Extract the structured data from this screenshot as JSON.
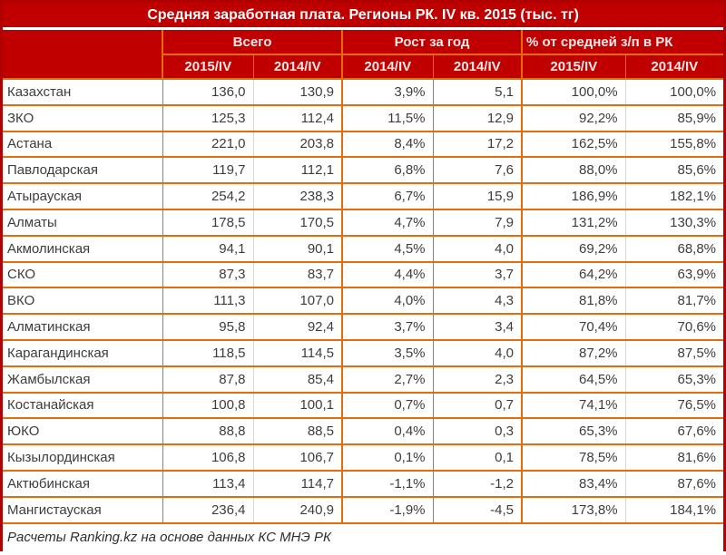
{
  "title": "Средняя заработная плата. Регионы РК. IV кв. 2015 (тыс. тг)",
  "footer": "Расчеты Ranking.kz на основе данных КС МНЭ РК",
  "colors": {
    "dark_red_background": "#c00000",
    "outer_border_red": "#b00000",
    "orange_cell_border": "#e66c09",
    "light_gray_cell_border": "#d6d6d6",
    "title_text": "#ffffff",
    "header_text": "#fbe9e7",
    "data_text": "#3d3d3d"
  },
  "chart_data": {
    "type": "table",
    "title": "Средняя заработная плата. Регионы РК. IV кв. 2015 (тыс. тг)",
    "column_groups": [
      {
        "label": "Всего",
        "columns": [
          "2015/IV",
          "2014/IV"
        ]
      },
      {
        "label": "Рост за год",
        "columns": [
          "2014/IV",
          "2014/IV"
        ]
      },
      {
        "label": "% от средней з/п в РК",
        "columns": [
          "2015/IV",
          "2014/IV"
        ]
      }
    ],
    "rows": [
      {
        "region": "Казахстан",
        "values": [
          "136,0",
          "130,9",
          "3,9%",
          "5,1",
          "100,0%",
          "100,0%"
        ]
      },
      {
        "region": "ЗКО",
        "values": [
          "125,3",
          "112,4",
          "11,5%",
          "12,9",
          "92,2%",
          "85,9%"
        ]
      },
      {
        "region": "Астана",
        "values": [
          "221,0",
          "203,8",
          "8,4%",
          "17,2",
          "162,5%",
          "155,8%"
        ]
      },
      {
        "region": "Павлодарская",
        "values": [
          "119,7",
          "112,1",
          "6,8%",
          "7,6",
          "88,0%",
          "85,6%"
        ]
      },
      {
        "region": "Атырауская",
        "values": [
          "254,2",
          "238,3",
          "6,7%",
          "15,9",
          "186,9%",
          "182,1%"
        ]
      },
      {
        "region": "Алматы",
        "values": [
          "178,5",
          "170,5",
          "4,7%",
          "7,9",
          "131,2%",
          "130,3%"
        ]
      },
      {
        "region": "Акмолинская",
        "values": [
          "94,1",
          "90,1",
          "4,5%",
          "4,0",
          "69,2%",
          "68,8%"
        ]
      },
      {
        "region": "СКО",
        "values": [
          "87,3",
          "83,7",
          "4,4%",
          "3,7",
          "64,2%",
          "63,9%"
        ]
      },
      {
        "region": "ВКО",
        "values": [
          "111,3",
          "107,0",
          "4,0%",
          "4,3",
          "81,8%",
          "81,7%"
        ]
      },
      {
        "region": "Алматинская",
        "values": [
          "95,8",
          "92,4",
          "3,7%",
          "3,4",
          "70,4%",
          "70,6%"
        ]
      },
      {
        "region": "Карагандинская",
        "values": [
          "118,5",
          "114,5",
          "3,5%",
          "4,0",
          "87,2%",
          "87,5%"
        ]
      },
      {
        "region": "Жамбылская",
        "values": [
          "87,8",
          "85,4",
          "2,7%",
          "2,3",
          "64,5%",
          "65,3%"
        ]
      },
      {
        "region": "Костанайская",
        "values": [
          "100,8",
          "100,1",
          "0,7%",
          "0,7",
          "74,1%",
          "76,5%"
        ]
      },
      {
        "region": "ЮКО",
        "values": [
          "88,8",
          "88,5",
          "0,4%",
          "0,3",
          "65,3%",
          "67,6%"
        ]
      },
      {
        "region": "Кызылординская",
        "values": [
          "106,8",
          "106,7",
          "0,1%",
          "0,1",
          "78,5%",
          "81,6%"
        ]
      },
      {
        "region": "Актюбинская",
        "values": [
          "113,4",
          "114,7",
          "-1,1%",
          "-1,2",
          "83,4%",
          "87,6%"
        ]
      },
      {
        "region": "Мангистауская",
        "values": [
          "236,4",
          "240,9",
          "-1,9%",
          "-4,5",
          "173,8%",
          "184,1%"
        ]
      }
    ],
    "footer": "Расчеты Ranking.kz на основе данных КС МНЭ РК"
  }
}
